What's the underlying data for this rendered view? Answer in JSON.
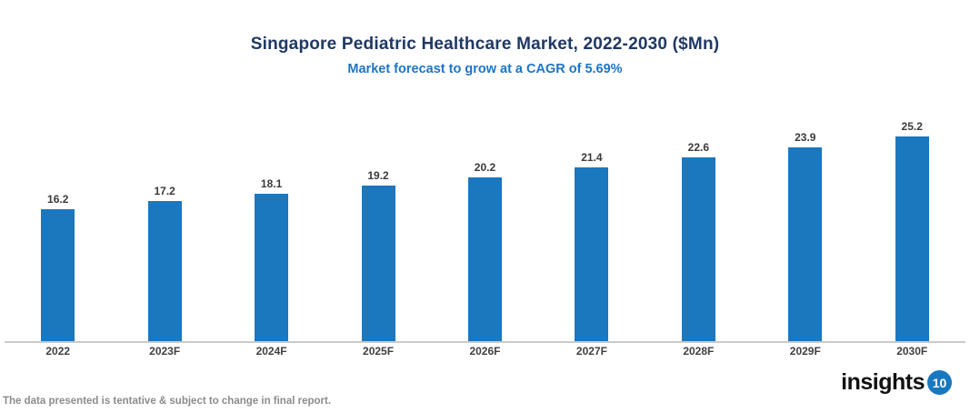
{
  "header": {
    "title": "Singapore Pediatric Healthcare Market, 2022-2030 ($Mn)",
    "subtitle": "Market forecast to grow at a CAGR of 5.69%"
  },
  "chart_data": {
    "type": "bar",
    "title": "Singapore Pediatric Healthcare Market, 2022-2030 ($Mn)",
    "subtitle": "Market forecast to grow at a CAGR of 5.69%",
    "categories": [
      "2022",
      "2023F",
      "2024F",
      "2025F",
      "2026F",
      "2027F",
      "2028F",
      "2029F",
      "2030F"
    ],
    "values": [
      16.2,
      17.2,
      18.1,
      19.2,
      20.2,
      21.4,
      22.6,
      23.9,
      25.2
    ],
    "xlabel": "",
    "ylabel": "",
    "ylim": [
      0,
      28
    ],
    "grid": false,
    "legend_position": "none",
    "value_labels_shown": true,
    "bar_color": "#1B77BE"
  },
  "footer": {
    "disclaimer": "The data presented is tentative & subject to change in final report.",
    "logo_text": "insights",
    "logo_badge": "10"
  },
  "colors": {
    "title": "#1F3864",
    "subtitle": "#1B75C5",
    "bar": "#1B77BE",
    "axis_line": "#C9C9C9",
    "value_label": "#3A3A3A",
    "x_label": "#404040",
    "footer_text": "#8C8C8C",
    "logo_badge_bg": "#1878BE"
  }
}
